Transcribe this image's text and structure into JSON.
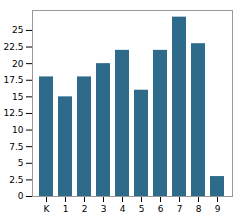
{
  "chart_data": {
    "type": "bar",
    "categories": [
      "K",
      "1",
      "2",
      "3",
      "4",
      "5",
      "6",
      "7",
      "8",
      "9"
    ],
    "values": [
      18,
      15,
      18,
      20,
      22,
      16,
      22,
      27,
      23,
      3
    ],
    "color": "#2e6b8a",
    "ylim": [
      0,
      28
    ],
    "yticks": [
      0,
      2.5,
      5,
      7.5,
      10,
      12.5,
      15,
      17.5,
      20,
      22.5,
      25
    ],
    "grid": false
  }
}
